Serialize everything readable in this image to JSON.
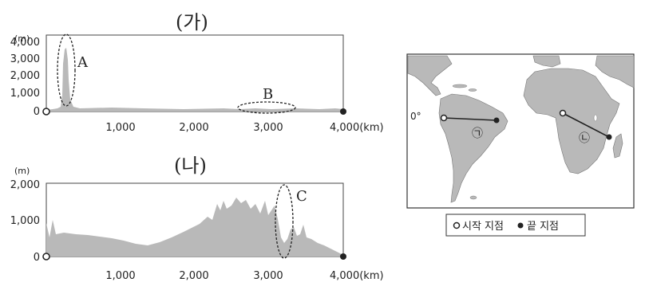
{
  "profiles": [
    {
      "title": "(가)",
      "unit": "(m)",
      "y_ticks": [
        "4,000",
        "3,000",
        "2,000",
        "1,000",
        "0"
      ],
      "x_ticks": [
        "1,000",
        "2,000",
        "3,000",
        "4,000(km)"
      ],
      "labels": [
        {
          "text": "A"
        },
        {
          "text": "B"
        }
      ]
    },
    {
      "title": "(나)",
      "unit": "(m)",
      "y_ticks": [
        "2,000",
        "1,000",
        "0"
      ],
      "x_ticks": [
        "1,000",
        "2,000",
        "3,000",
        "4,000(km)"
      ],
      "labels": [
        {
          "text": "C"
        }
      ]
    }
  ],
  "map": {
    "equator_label": "0°",
    "route_labels": [
      "㉠",
      "㉡"
    ],
    "legend": {
      "start": "시작 지점",
      "end": "끝 지점"
    }
  },
  "colors": {
    "profile_fill": "#b7b7b7",
    "ocean": "#ffffff",
    "land": "#b9b9b9",
    "ink": "#222222"
  }
}
